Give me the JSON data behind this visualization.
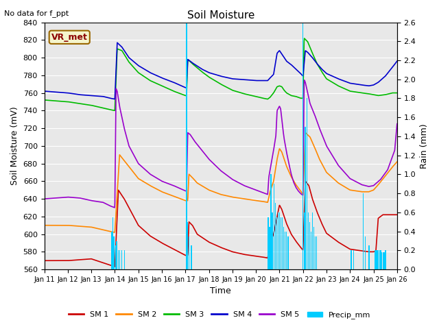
{
  "title": "Soil Moisture",
  "subtitle": "No data for f_ppt",
  "ylabel_left": "Soil Moisture (mV)",
  "ylabel_right": "Rain (mm)",
  "xlabel": "Time",
  "ylim_left": [
    560,
    840
  ],
  "ylim_right": [
    0.0,
    2.6
  ],
  "yticks_left": [
    560,
    580,
    600,
    620,
    640,
    660,
    680,
    700,
    720,
    740,
    760,
    780,
    800,
    820,
    840
  ],
  "yticks_right": [
    0.0,
    0.2,
    0.4,
    0.6,
    0.8,
    1.0,
    1.2,
    1.4,
    1.6,
    1.8,
    2.0,
    2.2,
    2.4,
    2.6
  ],
  "xtick_labels": [
    "Jan 11",
    "Jan 12",
    "Jan 13",
    "Jan 14",
    "Jan 15",
    "Jan 16",
    "Jan 17",
    "Jan 18",
    "Jan 19",
    "Jan 20",
    "Jan 21",
    "Jan 22",
    "Jan 23",
    "Jan 24",
    "Jan 25",
    "Jan 26"
  ],
  "box_label": "VR_met",
  "colors": {
    "SM1": "#cc0000",
    "SM2": "#ff8800",
    "SM3": "#00bb00",
    "SM4": "#0000cc",
    "SM5": "#9900cc",
    "Precip": "#00ccff",
    "background": "#e8e8e8"
  },
  "legend_labels": [
    "SM 1",
    "SM 2",
    "SM 3",
    "SM 4",
    "SM 5",
    "Precip_mm"
  ]
}
